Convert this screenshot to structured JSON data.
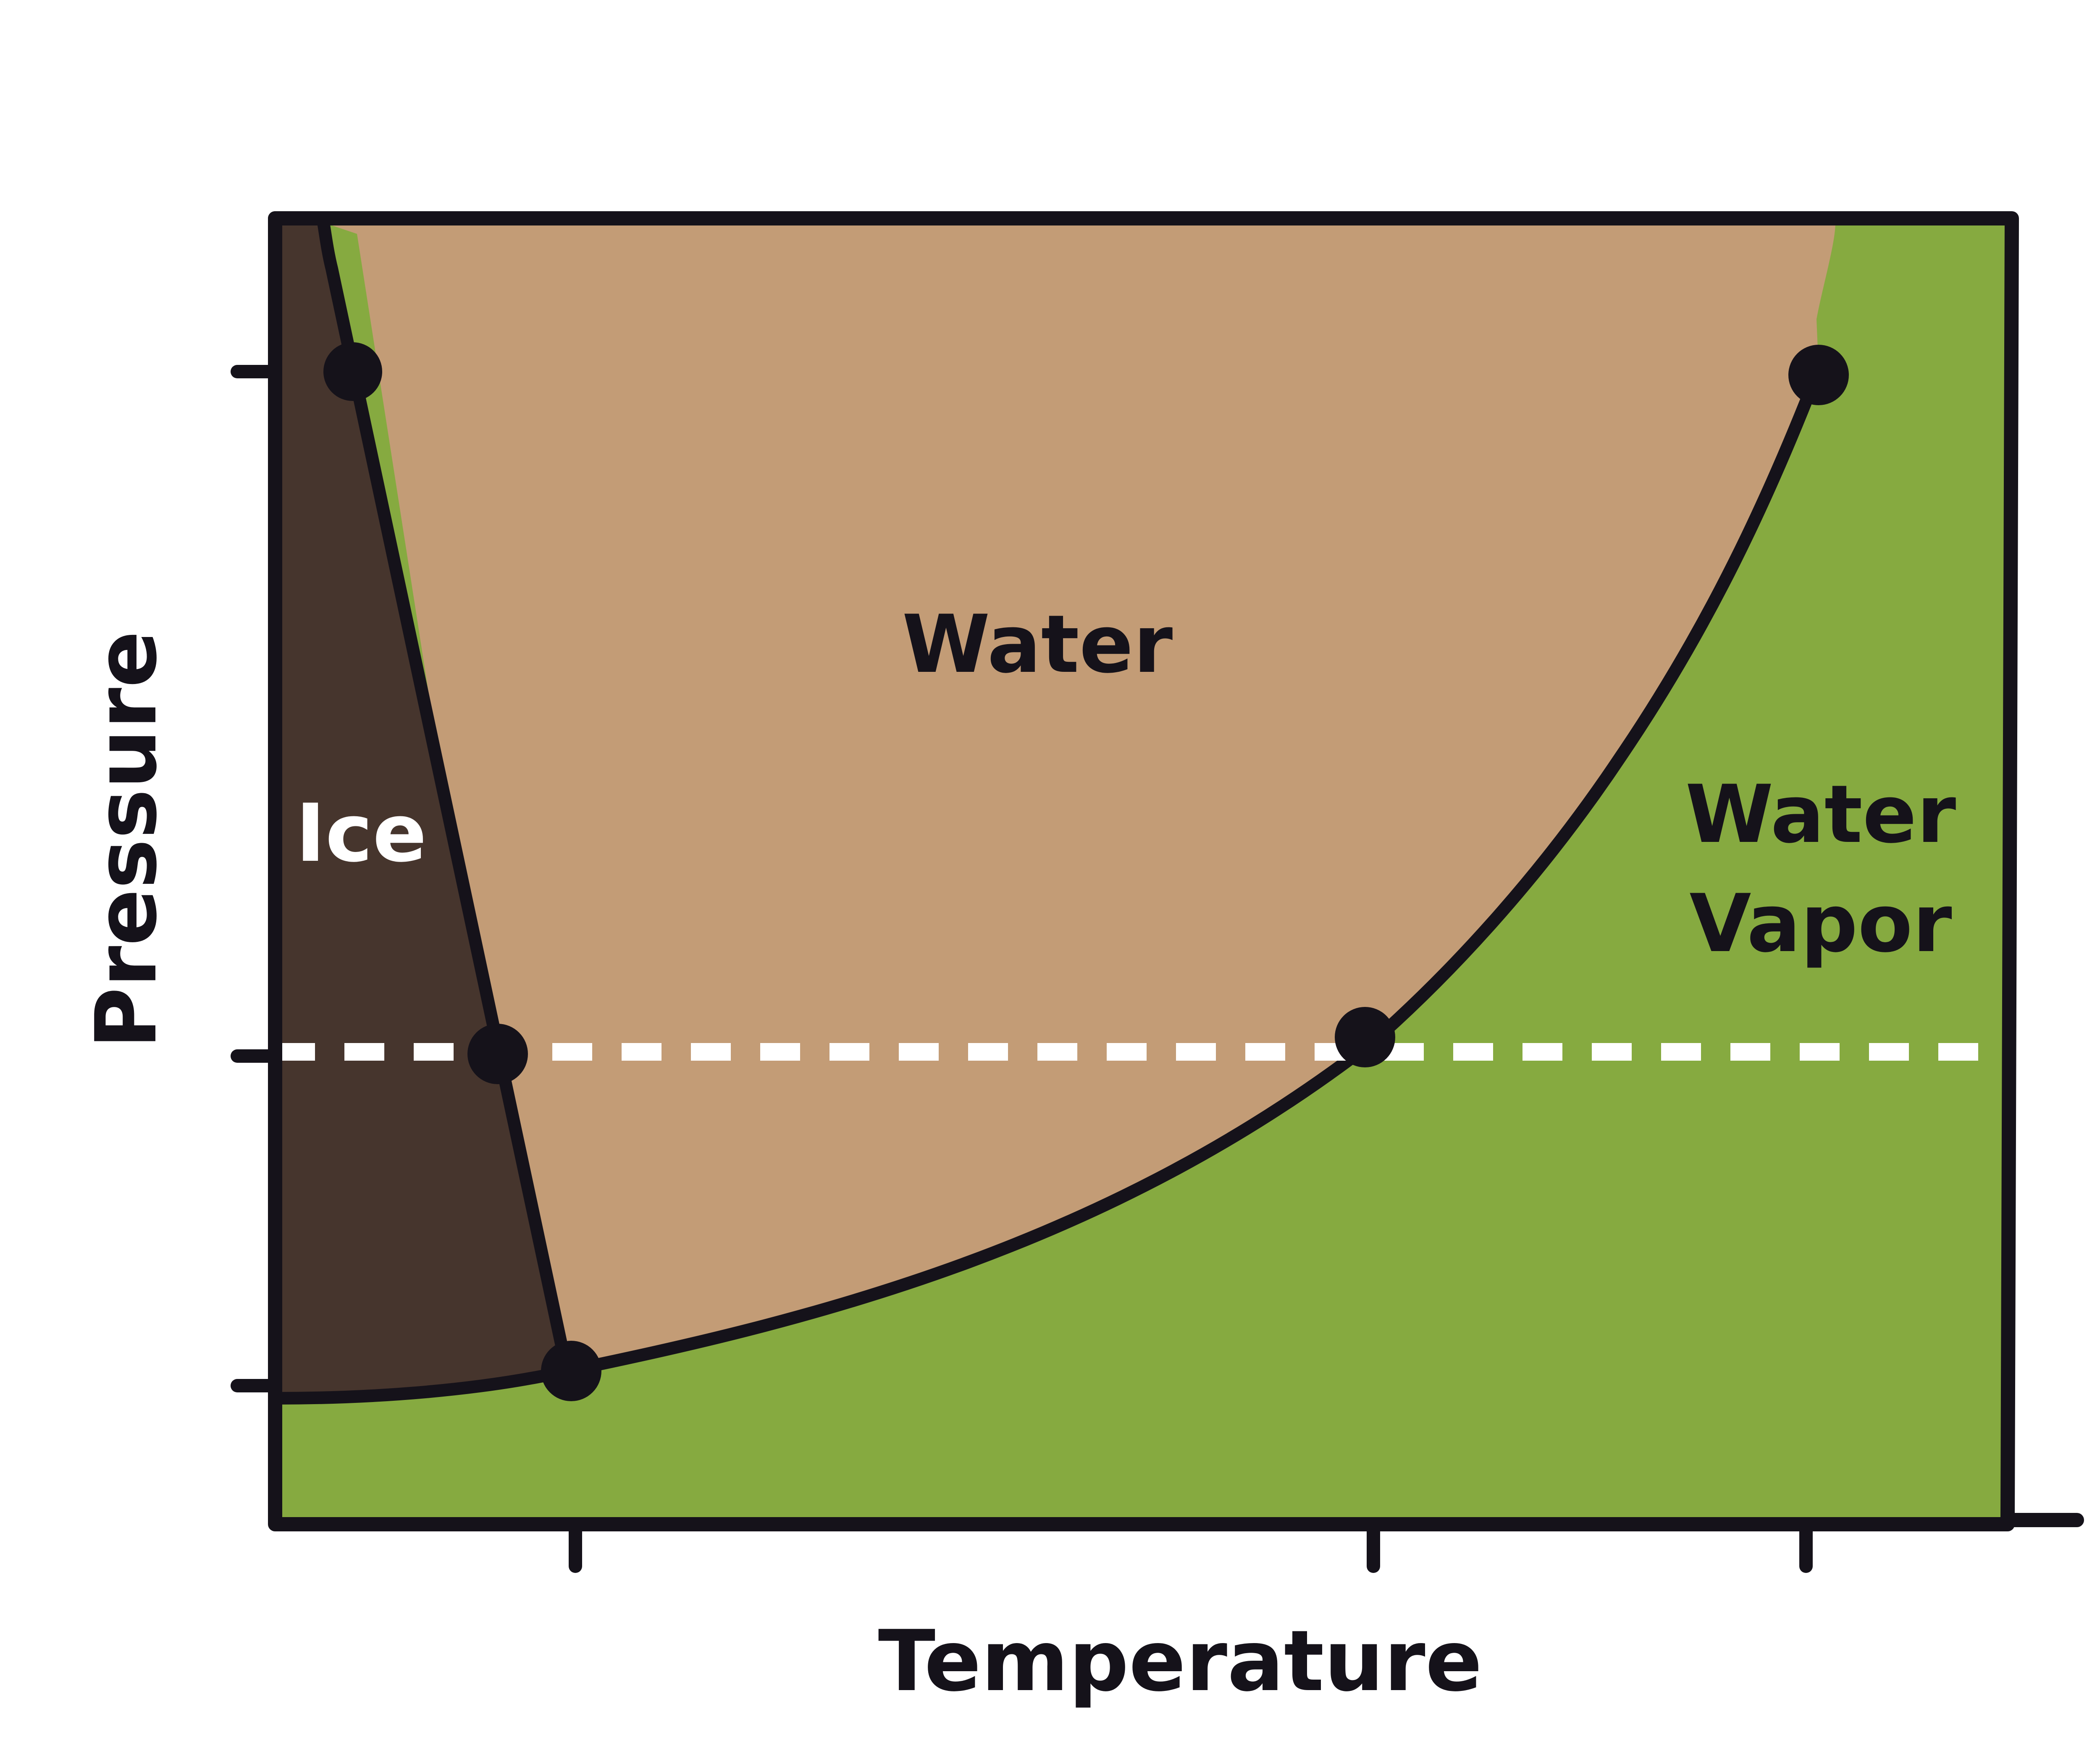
{
  "diagram": {
    "x_axis_label": "Temperature",
    "y_axis_label": "Pressure",
    "regions": {
      "ice": {
        "label": "Ice",
        "color": "#46352D"
      },
      "water": {
        "label": "Water",
        "color": "#C39C76"
      },
      "vapor": {
        "label_line1": "Water",
        "label_line2": "Vapor",
        "color": "#86AA40"
      }
    },
    "line_color": "#15121A",
    "reference_line_color": "#FFFFFF"
  }
}
